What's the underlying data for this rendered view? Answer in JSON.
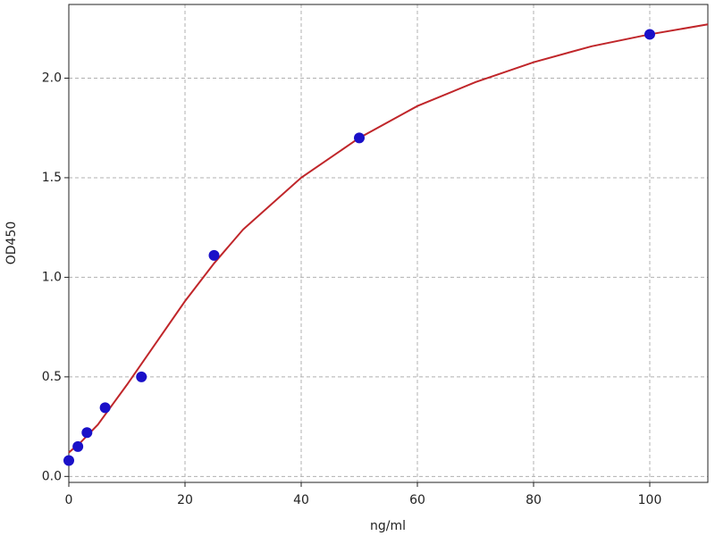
{
  "chart_data": {
    "type": "scatter",
    "xlabel": "ng/ml",
    "ylabel": "OD450",
    "xlim": [
      0,
      110
    ],
    "ylim": [
      -0.03,
      2.37
    ],
    "xticks": [
      0,
      20,
      40,
      60,
      80,
      100
    ],
    "yticks": [
      {
        "value": 0,
        "label": "0.0"
      },
      0.5,
      {
        "value": 1,
        "label": "1.0"
      },
      1.5,
      {
        "value": 2,
        "label": "2.0"
      }
    ],
    "grid": true,
    "series": [
      {
        "type": "scatter",
        "color": "#1a10c8",
        "x": [
          0,
          1.5625,
          3.125,
          6.25,
          12.5,
          25,
          50,
          100
        ],
        "values": [
          0.08,
          0.15,
          0.22,
          0.345,
          0.5,
          1.11,
          1.7,
          2.22
        ]
      },
      {
        "type": "line",
        "color": "#c0262a",
        "x": [
          0,
          2,
          5,
          10,
          15,
          20,
          25,
          30,
          40,
          50,
          60,
          70,
          80,
          90,
          100,
          110
        ],
        "values": [
          0.12,
          0.17,
          0.26,
          0.46,
          0.67,
          0.88,
          1.07,
          1.24,
          1.5,
          1.7,
          1.86,
          1.98,
          2.08,
          2.16,
          2.22,
          2.27
        ]
      }
    ]
  }
}
